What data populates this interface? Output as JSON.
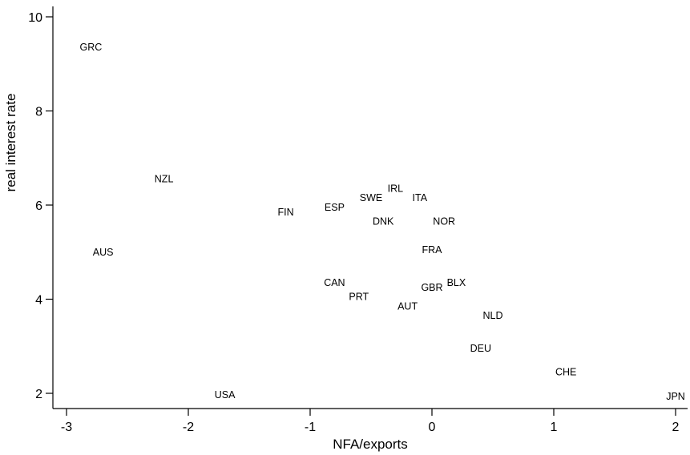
{
  "chart_data": {
    "type": "scatter",
    "title": "",
    "xlabel": "NFA/exports",
    "ylabel": "real interest rate",
    "xlim": [
      -3.1,
      2.1
    ],
    "ylim": [
      1.6,
      10.2
    ],
    "xticks": [
      -3,
      -2,
      -1,
      0,
      1,
      2
    ],
    "yticks": [
      2,
      4,
      6,
      8,
      10
    ],
    "grid": false,
    "legend": "none",
    "points": [
      {
        "label": "GRC",
        "x": -2.8,
        "y": 9.35
      },
      {
        "label": "NZL",
        "x": -2.2,
        "y": 6.55
      },
      {
        "label": "AUS",
        "x": -2.7,
        "y": 5.0
      },
      {
        "label": "FIN",
        "x": -1.2,
        "y": 5.85
      },
      {
        "label": "ESP",
        "x": -0.8,
        "y": 5.95
      },
      {
        "label": "SWE",
        "x": -0.5,
        "y": 6.15
      },
      {
        "label": "IRL",
        "x": -0.3,
        "y": 6.35
      },
      {
        "label": "ITA",
        "x": -0.1,
        "y": 6.15
      },
      {
        "label": "DNK",
        "x": -0.4,
        "y": 5.65
      },
      {
        "label": "NOR",
        "x": 0.1,
        "y": 5.65
      },
      {
        "label": "FRA",
        "x": 0.0,
        "y": 5.05
      },
      {
        "label": "CAN",
        "x": -0.8,
        "y": 4.35
      },
      {
        "label": "PRT",
        "x": -0.6,
        "y": 4.05
      },
      {
        "label": "GBR",
        "x": 0.0,
        "y": 4.25
      },
      {
        "label": "BLX",
        "x": 0.2,
        "y": 4.35
      },
      {
        "label": "AUT",
        "x": -0.2,
        "y": 3.85
      },
      {
        "label": "NLD",
        "x": 0.5,
        "y": 3.65
      },
      {
        "label": "DEU",
        "x": 0.4,
        "y": 2.95
      },
      {
        "label": "CHE",
        "x": 1.1,
        "y": 2.45
      },
      {
        "label": "USA",
        "x": -1.7,
        "y": 1.97
      },
      {
        "label": "JPN",
        "x": 2.0,
        "y": 1.93
      }
    ]
  }
}
